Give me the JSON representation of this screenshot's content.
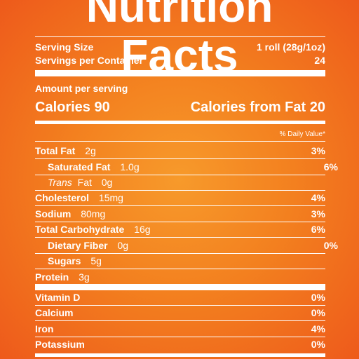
{
  "title": "Nutrition Facts",
  "serving": {
    "size_label": "Serving Size",
    "size_value": "1 roll (28g/1oz)",
    "per_container_label": "Servings per Container",
    "per_container_value": "24"
  },
  "amount_per_serving": "Amount per serving",
  "calories": {
    "label": "Calories 90",
    "from_fat": "Calories from Fat 20"
  },
  "daily_value_header": "% Daily Value*",
  "nutrients": [
    {
      "name": "Total Fat",
      "amount": "2g",
      "dv": "3%"
    },
    {
      "name": "Saturated Fat",
      "amount": "1.0g",
      "dv": "6%"
    },
    {
      "name_italic": "Trans",
      "name": "Fat",
      "amount": "0g",
      "dv": ""
    },
    {
      "name": "Cholesterol",
      "amount": "15mg",
      "dv": "4%"
    },
    {
      "name": "Sodium",
      "amount": "80mg",
      "dv": "3%"
    },
    {
      "name": "Total Carbohydrate",
      "amount": "16g",
      "dv": "6%"
    },
    {
      "name": "Dietary Fiber",
      "amount": "0g",
      "dv": "0%"
    },
    {
      "name": "Sugars",
      "amount": "5g",
      "dv": ""
    },
    {
      "name": "Protein",
      "amount": "3g",
      "dv": ""
    }
  ],
  "vitamins": [
    {
      "name": "Vitamin D",
      "dv": "0%"
    },
    {
      "name": "Calcium",
      "dv": "0%"
    },
    {
      "name": "Iron",
      "dv": "4%"
    },
    {
      "name": "Potassium",
      "dv": "0%"
    }
  ],
  "colors": {
    "background_center": "#f79a2b",
    "background_edge": "#ee5a1b",
    "text": "#ffffff"
  }
}
